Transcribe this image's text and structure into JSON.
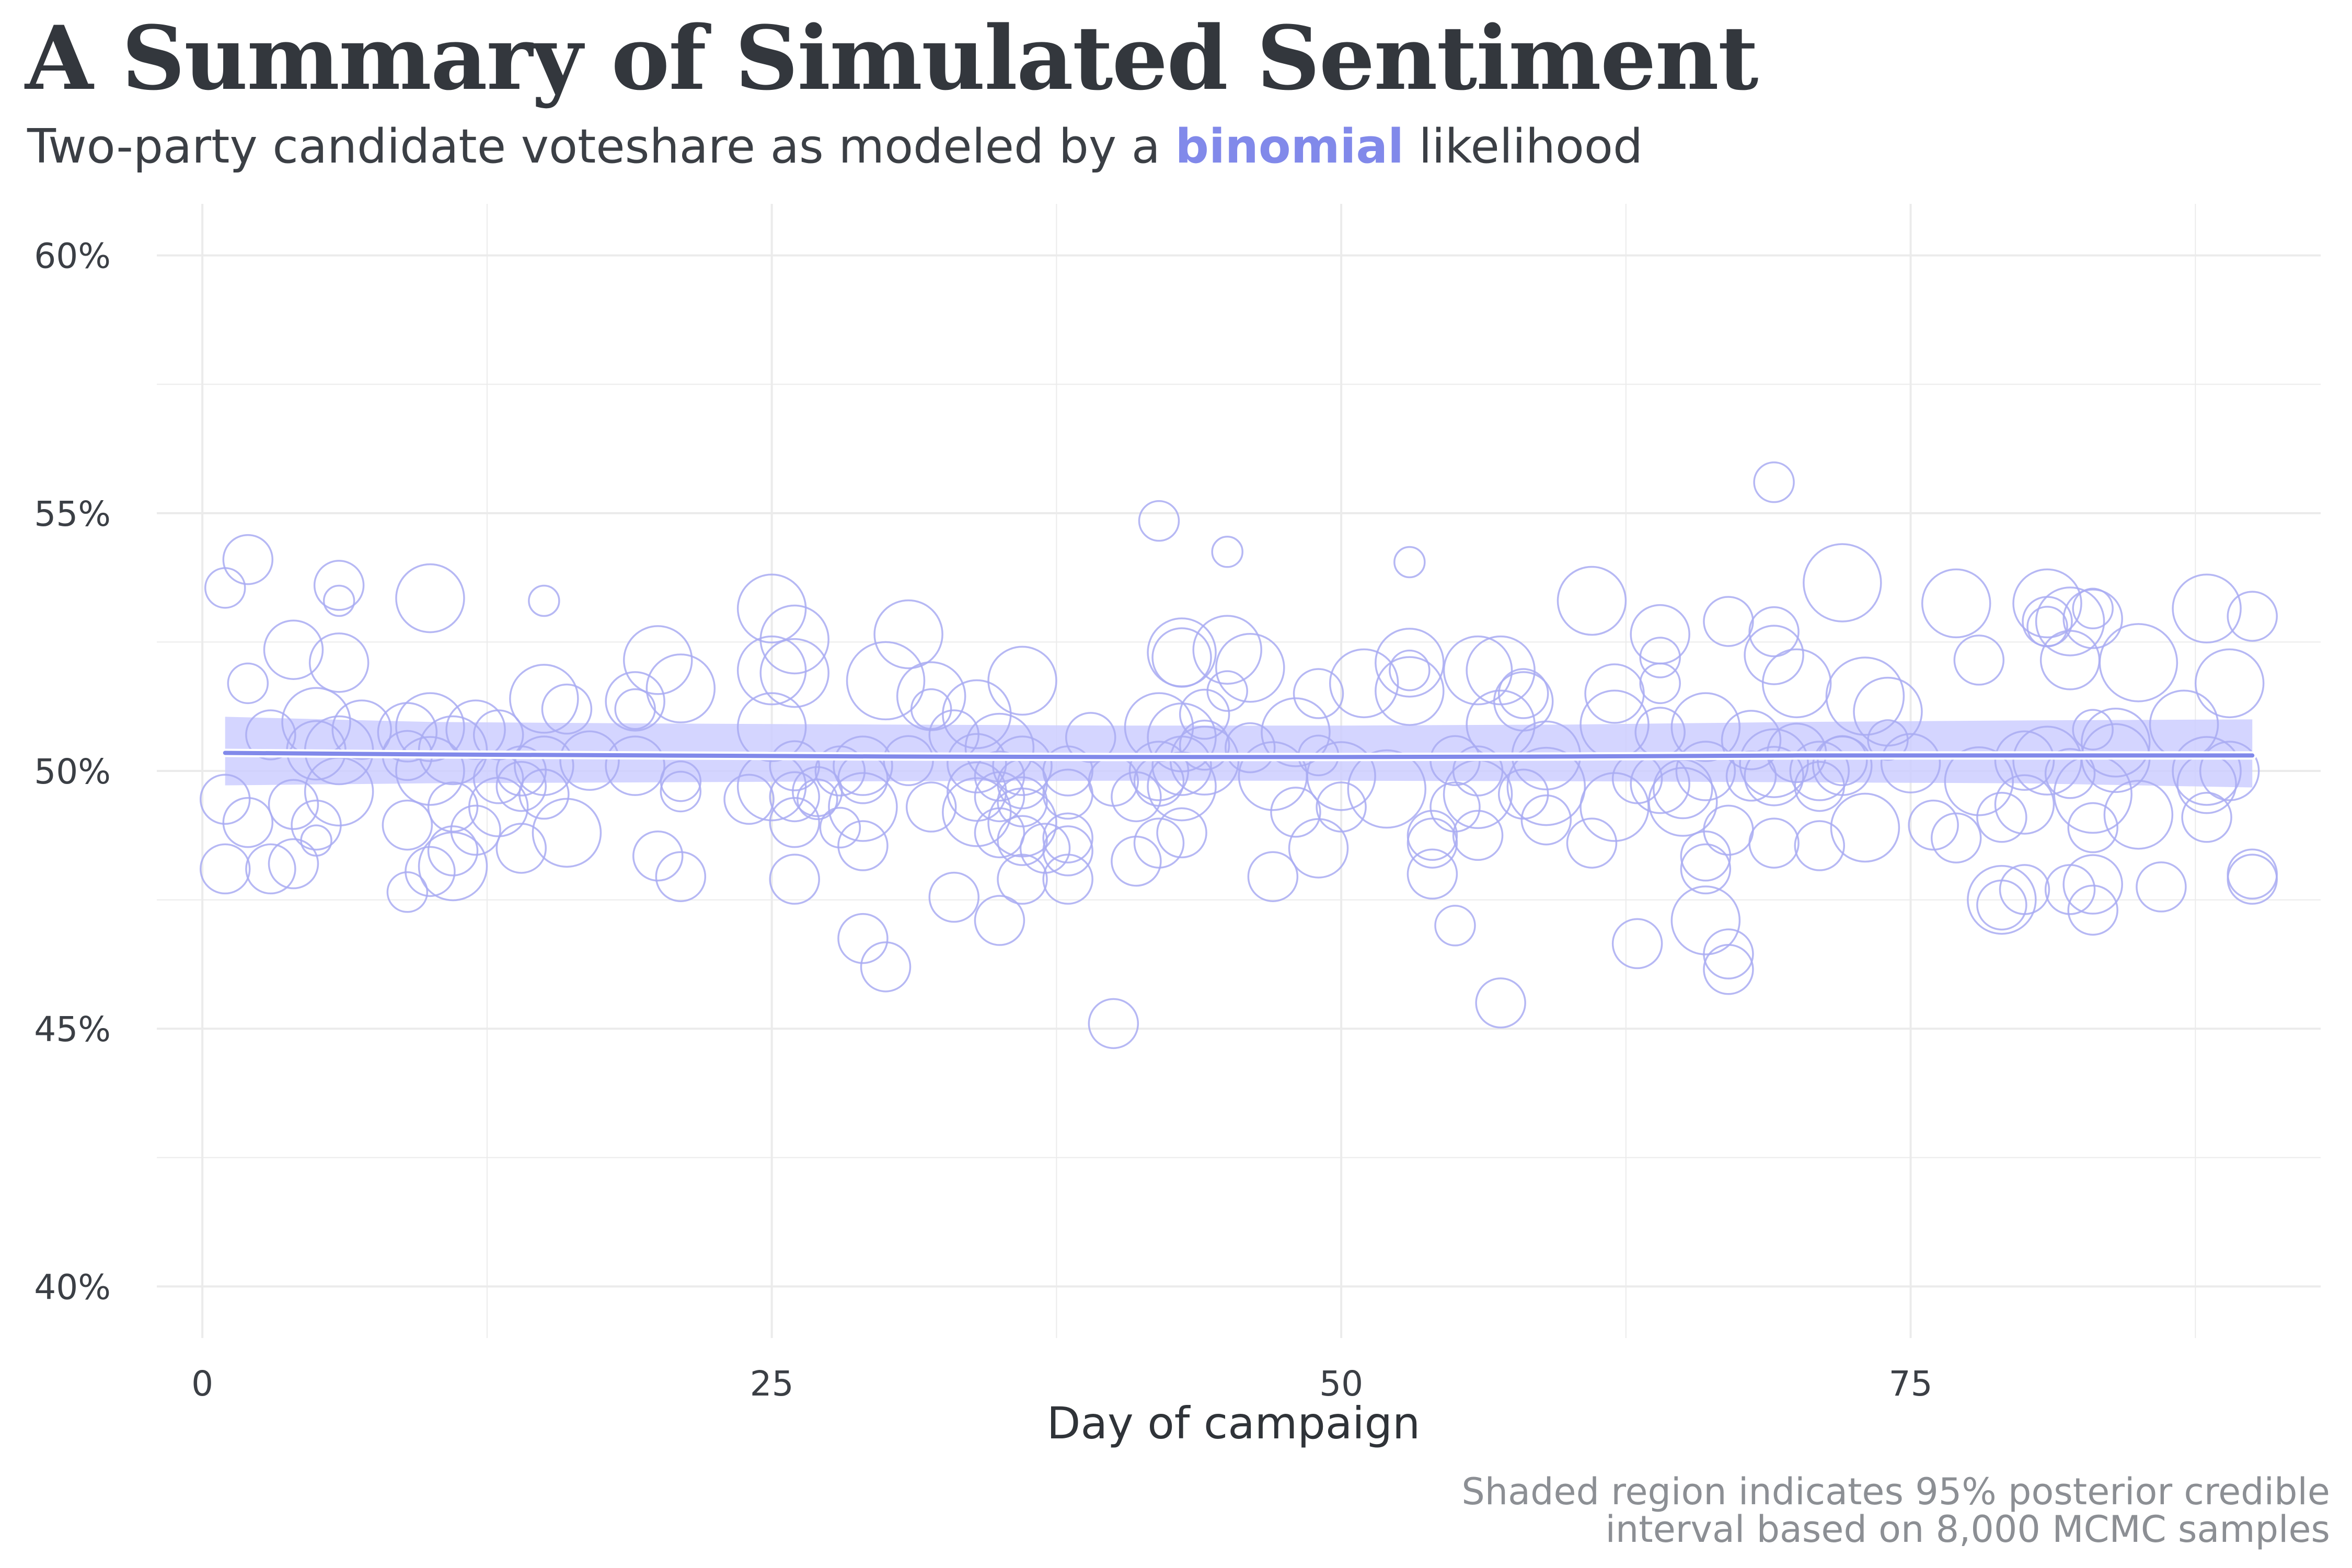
{
  "title": "A Summary of Simulated Sentiment",
  "subtitle": {
    "prefix": "Two-party candidate voteshare as modeled by a ",
    "highlight": "binomial",
    "suffix": " likelihood"
  },
  "caption": [
    "Shaded region indicates 95% posterior credible",
    "interval based on 8,000 MCMC samples"
  ],
  "colors": {
    "accent": "#8189ea",
    "point_stroke": "#a9acf2",
    "band": "#ccceff",
    "grid": "#ebebeb",
    "text": "#33373d"
  },
  "chart_data": {
    "type": "scatter",
    "xlabel": "Day of campaign",
    "ylabel": "",
    "xlim": [
      -2,
      93
    ],
    "ylim": [
      39,
      61
    ],
    "x_ticks": [
      0,
      25,
      50,
      75
    ],
    "x_tick_labels": [
      "0",
      "25",
      "50",
      "75"
    ],
    "y_ticks": [
      40,
      45,
      50,
      55,
      60
    ],
    "y_tick_labels": [
      "40%",
      "45%",
      "50%",
      "55%",
      "60%"
    ],
    "grid": true,
    "point_style": "hollow circles, size proportional to poll sample size",
    "fit_line": {
      "x": [
        1,
        10,
        20,
        30,
        40,
        50,
        60,
        70,
        80,
        90
      ],
      "y": [
        50.35,
        50.32,
        50.3,
        50.28,
        50.27,
        50.27,
        50.28,
        50.3,
        50.3,
        50.3
      ]
    },
    "credible_band": {
      "x": [
        1,
        10,
        20,
        30,
        40,
        50,
        60,
        70,
        80,
        90
      ],
      "lower": [
        49.72,
        49.76,
        49.78,
        49.8,
        49.81,
        49.81,
        49.8,
        49.78,
        49.76,
        49.68
      ],
      "upper": [
        51.05,
        50.95,
        50.92,
        50.9,
        50.88,
        50.88,
        50.9,
        50.95,
        50.98,
        51.0
      ]
    },
    "points": [
      [
        1,
        53.55,
        2
      ],
      [
        1,
        49.45,
        3
      ],
      [
        1,
        48.1,
        3
      ],
      [
        2,
        54.1,
        3
      ],
      [
        2,
        51.7,
        2
      ],
      [
        2,
        49.0,
        3
      ],
      [
        3,
        50.7,
        3
      ],
      [
        3,
        48.1,
        3
      ],
      [
        4,
        52.35,
        4
      ],
      [
        4,
        49.35,
        3
      ],
      [
        4,
        48.2,
        3
      ],
      [
        5,
        50.95,
        5
      ],
      [
        5,
        50.4,
        4
      ],
      [
        5,
        48.95,
        3
      ],
      [
        5,
        48.65,
        1
      ],
      [
        6,
        53.6,
        3
      ],
      [
        6,
        53.3,
        1
      ],
      [
        6,
        52.1,
        4
      ],
      [
        6,
        50.4,
        5
      ],
      [
        6,
        49.6,
        5
      ],
      [
        7,
        50.8,
        4
      ],
      [
        9,
        50.75,
        4
      ],
      [
        9,
        50.3,
        3
      ],
      [
        9,
        48.95,
        3
      ],
      [
        9,
        47.65,
        2
      ],
      [
        10,
        53.35,
        5
      ],
      [
        10,
        50.85,
        5
      ],
      [
        10,
        50.0,
        5
      ],
      [
        10,
        48.05,
        3
      ],
      [
        11,
        50.4,
        5
      ],
      [
        11,
        49.3,
        3
      ],
      [
        11,
        48.45,
        3
      ],
      [
        11,
        48.15,
        5
      ],
      [
        12,
        50.8,
        4
      ],
      [
        12,
        48.85,
        3
      ],
      [
        13,
        50.7,
        3
      ],
      [
        13,
        49.85,
        3
      ],
      [
        13,
        49.3,
        4
      ],
      [
        14,
        50.0,
        3
      ],
      [
        14,
        49.7,
        3
      ],
      [
        14,
        48.5,
        3
      ],
      [
        15,
        53.3,
        1
      ],
      [
        15,
        51.4,
        5
      ],
      [
        15,
        50.1,
        4
      ],
      [
        15,
        49.55,
        3
      ],
      [
        16,
        51.2,
        3
      ],
      [
        16,
        48.8,
        5
      ],
      [
        17,
        50.2,
        4
      ],
      [
        19,
        51.35,
        4
      ],
      [
        19,
        51.2,
        2
      ],
      [
        19,
        50.1,
        4
      ],
      [
        20,
        52.15,
        5
      ],
      [
        20,
        48.35,
        3
      ],
      [
        21,
        51.6,
        5
      ],
      [
        21,
        49.8,
        2
      ],
      [
        21,
        49.6,
        2
      ],
      [
        21,
        47.95,
        3
      ],
      [
        24,
        49.45,
        3
      ],
      [
        25,
        53.15,
        5
      ],
      [
        25,
        51.95,
        5
      ],
      [
        25,
        50.85,
        5
      ],
      [
        25,
        49.7,
        5
      ],
      [
        26,
        52.55,
        5
      ],
      [
        26,
        51.9,
        5
      ],
      [
        26,
        50.1,
        3
      ],
      [
        26,
        49.5,
        3
      ],
      [
        26,
        49.0,
        3
      ],
      [
        26,
        47.9,
        3
      ],
      [
        27,
        49.6,
        3
      ],
      [
        27,
        49.45,
        2
      ],
      [
        28,
        50.0,
        3
      ],
      [
        28,
        48.9,
        2
      ],
      [
        29,
        50.1,
        4
      ],
      [
        29,
        49.85,
        3
      ],
      [
        29,
        49.3,
        5
      ],
      [
        29,
        48.55,
        3
      ],
      [
        29,
        46.75,
        3
      ],
      [
        30,
        51.75,
        6
      ],
      [
        30,
        46.2,
        3
      ],
      [
        31,
        52.65,
        5
      ],
      [
        31,
        50.2,
        3
      ],
      [
        32,
        51.45,
        5
      ],
      [
        32,
        51.2,
        2
      ],
      [
        32,
        49.3,
        3
      ],
      [
        33,
        50.7,
        3
      ],
      [
        33,
        47.55,
        3
      ],
      [
        34,
        51.1,
        5
      ],
      [
        34,
        50.15,
        4
      ],
      [
        34,
        49.6,
        4
      ],
      [
        34,
        49.2,
        5
      ],
      [
        35,
        50.45,
        5
      ],
      [
        35,
        49.9,
        3
      ],
      [
        35,
        49.5,
        3
      ],
      [
        35,
        48.8,
        3
      ],
      [
        35,
        47.1,
        3
      ],
      [
        36,
        51.75,
        5
      ],
      [
        36,
        50.1,
        4
      ],
      [
        36,
        49.75,
        3
      ],
      [
        36,
        49.4,
        3
      ],
      [
        36,
        49.0,
        5
      ],
      [
        36,
        48.65,
        3
      ],
      [
        36,
        47.9,
        3
      ],
      [
        37,
        48.5,
        3
      ],
      [
        38,
        50.0,
        3
      ],
      [
        38,
        49.55,
        3
      ],
      [
        38,
        48.7,
        3
      ],
      [
        38,
        48.45,
        3
      ],
      [
        38,
        47.9,
        3
      ],
      [
        39,
        50.65,
        3
      ],
      [
        40,
        49.8,
        3
      ],
      [
        40,
        45.1,
        3
      ],
      [
        41,
        49.5,
        3
      ],
      [
        41,
        48.25,
        3
      ],
      [
        42,
        54.85,
        2
      ],
      [
        42,
        50.85,
        5
      ],
      [
        42,
        50.0,
        4
      ],
      [
        42,
        49.8,
        3
      ],
      [
        42,
        48.6,
        3
      ],
      [
        43,
        52.3,
        5
      ],
      [
        43,
        52.2,
        4
      ],
      [
        43,
        50.65,
        5
      ],
      [
        43,
        50.1,
        4
      ],
      [
        43,
        49.7,
        5
      ],
      [
        43,
        48.8,
        3
      ],
      [
        44,
        51.1,
        3
      ],
      [
        44,
        50.5,
        3
      ],
      [
        44,
        50.2,
        5
      ],
      [
        45,
        54.25,
        1
      ],
      [
        45,
        52.35,
        5
      ],
      [
        45,
        51.55,
        2
      ],
      [
        46,
        52.0,
        5
      ],
      [
        46,
        50.45,
        3
      ],
      [
        47,
        49.9,
        5
      ],
      [
        47,
        47.95,
        3
      ],
      [
        48,
        50.75,
        5
      ],
      [
        48,
        49.2,
        3
      ],
      [
        49,
        51.5,
        3
      ],
      [
        49,
        50.3,
        2
      ],
      [
        49,
        48.5,
        4
      ],
      [
        50,
        49.9,
        5
      ],
      [
        50,
        49.3,
        3
      ],
      [
        51,
        51.7,
        5
      ],
      [
        52,
        49.65,
        6
      ],
      [
        53,
        54.05,
        1
      ],
      [
        53,
        52.1,
        5
      ],
      [
        53,
        51.95,
        2
      ],
      [
        53,
        51.55,
        5
      ],
      [
        54,
        48.75,
        3
      ],
      [
        54,
        48.6,
        3
      ],
      [
        54,
        48.0,
        3
      ],
      [
        55,
        50.2,
        3
      ],
      [
        55,
        49.3,
        3
      ],
      [
        55,
        47.0,
        2
      ],
      [
        56,
        51.95,
        5
      ],
      [
        56,
        50.0,
        3
      ],
      [
        56,
        49.55,
        5
      ],
      [
        56,
        48.75,
        3
      ],
      [
        57,
        51.95,
        5
      ],
      [
        57,
        50.9,
        5
      ],
      [
        57,
        45.5,
        3
      ],
      [
        58,
        51.5,
        3
      ],
      [
        58,
        51.35,
        4
      ],
      [
        58,
        49.55,
        3
      ],
      [
        59,
        50.3,
        5
      ],
      [
        59,
        49.7,
        6
      ],
      [
        59,
        49.05,
        3
      ],
      [
        61,
        53.3,
        5
      ],
      [
        61,
        48.6,
        3
      ],
      [
        62,
        51.5,
        4
      ],
      [
        62,
        50.9,
        5
      ],
      [
        62,
        49.3,
        5
      ],
      [
        63,
        49.85,
        3
      ],
      [
        63,
        46.65,
        3
      ],
      [
        64,
        52.65,
        4
      ],
      [
        64,
        52.2,
        2
      ],
      [
        64,
        51.7,
        2
      ],
      [
        64,
        50.75,
        3
      ],
      [
        64,
        49.75,
        4
      ],
      [
        65,
        49.65,
        4
      ],
      [
        65,
        49.4,
        5
      ],
      [
        66,
        50.85,
        5
      ],
      [
        66,
        50.0,
        4
      ],
      [
        66,
        48.35,
        3
      ],
      [
        66,
        48.1,
        3
      ],
      [
        66,
        47.1,
        5
      ],
      [
        67,
        52.9,
        3
      ],
      [
        67,
        48.85,
        3
      ],
      [
        67,
        46.45,
        3
      ],
      [
        67,
        46.15,
        3
      ],
      [
        68,
        50.6,
        4
      ],
      [
        68,
        49.9,
        3
      ],
      [
        69,
        55.6,
        2
      ],
      [
        69,
        52.7,
        3
      ],
      [
        69,
        52.25,
        4
      ],
      [
        69,
        50.15,
        5
      ],
      [
        69,
        49.9,
        4
      ],
      [
        69,
        48.6,
        3
      ],
      [
        70,
        51.7,
        5
      ],
      [
        70,
        50.35,
        4
      ],
      [
        71,
        50.0,
        4
      ],
      [
        71,
        49.7,
        3
      ],
      [
        71,
        48.55,
        3
      ],
      [
        72,
        53.65,
        6
      ],
      [
        72,
        50.2,
        3
      ],
      [
        72,
        50.1,
        4
      ],
      [
        73,
        51.45,
        6
      ],
      [
        73,
        48.9,
        5
      ],
      [
        74,
        51.15,
        5
      ],
      [
        74,
        50.6,
        2
      ],
      [
        75,
        50.15,
        4
      ],
      [
        76,
        48.95,
        3
      ],
      [
        77,
        53.25,
        5
      ],
      [
        77,
        48.7,
        3
      ],
      [
        78,
        52.15,
        3
      ],
      [
        78,
        49.8,
        5
      ],
      [
        79,
        47.5,
        5
      ],
      [
        79,
        47.4,
        3
      ],
      [
        79,
        49.1,
        3
      ],
      [
        80,
        50.2,
        4
      ],
      [
        80,
        49.35,
        4
      ],
      [
        80,
        47.7,
        3
      ],
      [
        81,
        53.25,
        5
      ],
      [
        81,
        52.9,
        3
      ],
      [
        81,
        52.8,
        2
      ],
      [
        81,
        50.2,
        5
      ],
      [
        82,
        52.9,
        5
      ],
      [
        82,
        52.15,
        4
      ],
      [
        82,
        49.95,
        3
      ],
      [
        82,
        47.7,
        3
      ],
      [
        83,
        53.15,
        2
      ],
      [
        83,
        52.95,
        4
      ],
      [
        83,
        50.8,
        2
      ],
      [
        83,
        49.55,
        6
      ],
      [
        83,
        48.9,
        3
      ],
      [
        83,
        47.8,
        4
      ],
      [
        83,
        47.3,
        3
      ],
      [
        84,
        50.55,
        5
      ],
      [
        84,
        50.25,
        5
      ],
      [
        85,
        52.1,
        6
      ],
      [
        85,
        49.15,
        5
      ],
      [
        86,
        47.75,
        3
      ],
      [
        87,
        50.9,
        5
      ],
      [
        88,
        53.15,
        5
      ],
      [
        88,
        50.0,
        5
      ],
      [
        88,
        49.75,
        4
      ],
      [
        88,
        49.1,
        3
      ],
      [
        89,
        51.7,
        5
      ],
      [
        89,
        50.0,
        4
      ],
      [
        90,
        53.0,
        3
      ],
      [
        90,
        48.0,
        3
      ],
      [
        90,
        47.9,
        3
      ]
    ]
  }
}
